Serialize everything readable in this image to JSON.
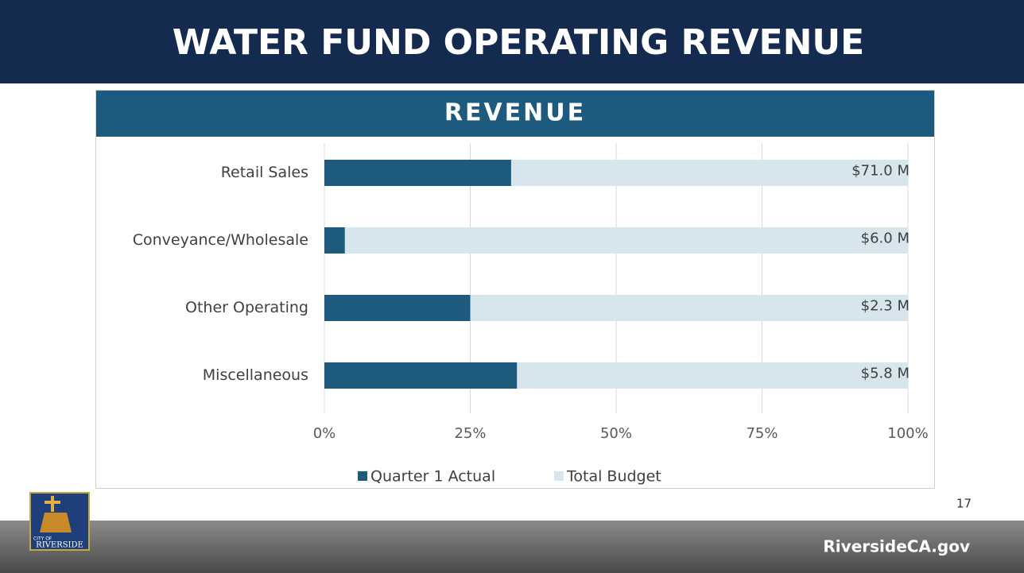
{
  "slide": {
    "title": "WATER FUND OPERATING REVENUE",
    "page_number": 17,
    "footer": "RiversideCA.gov",
    "logo": [
      "CITY OF",
      "RIVERSIDE"
    ]
  },
  "chart_data": {
    "type": "bar",
    "orientation": "horizontal",
    "title": "REVENUE",
    "categories": [
      "Retail Sales",
      "Conveyance/Wholesale",
      "Other Operating",
      "Miscellaneous"
    ],
    "series": [
      {
        "name": "Total Budget",
        "color": "#d6e6ec",
        "values": [
          100,
          100,
          100,
          100
        ]
      },
      {
        "name": "Quarter 1 Actual",
        "color": "#1e5a7e",
        "values": [
          32,
          3.5,
          25,
          33
        ]
      }
    ],
    "budget_labels": [
      "$71.0 M",
      "$6.0 M",
      "$2.3 M",
      "$5.8 M"
    ],
    "xlim": [
      0,
      100
    ],
    "xticks": [
      {
        "value": 0,
        "label": "0%"
      },
      {
        "value": 25,
        "label": "25%"
      },
      {
        "value": 50,
        "label": "50%"
      },
      {
        "value": 75,
        "label": "75%"
      },
      {
        "value": 100,
        "label": "100%"
      }
    ],
    "grid": true,
    "legend": "bottom"
  }
}
